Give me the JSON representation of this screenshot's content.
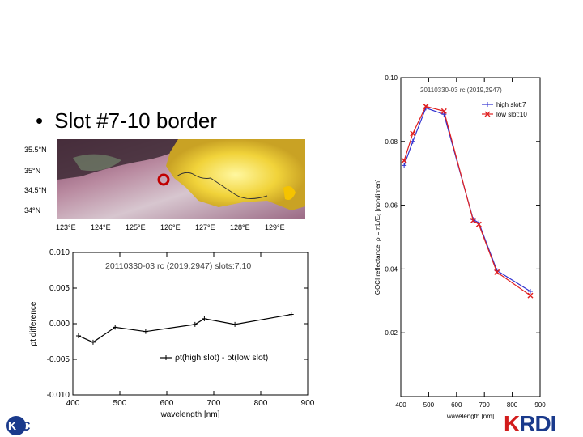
{
  "slide": {
    "bullet_text": "Slot #7-10 border",
    "bullet_mark": "•"
  },
  "map": {
    "lat_labels": [
      "35.5°N",
      "35°N",
      "34.5°N",
      "34°N"
    ],
    "lon_labels": [
      "123°E",
      "124°E",
      "125°E",
      "126°E",
      "127°E",
      "128°E",
      "129°E"
    ],
    "marker_color": "#c00000"
  },
  "logos": {
    "left_text": "KC",
    "right_text_a": "K",
    "right_text_b": "RDI"
  },
  "chart_data": [
    {
      "type": "line",
      "title": "20110330-03  rc   (2019,2947) slots:7,10",
      "xlabel": "wavelength [nm]",
      "ylabel": "ρt difference",
      "xlim": [
        400,
        900
      ],
      "ylim": [
        -0.01,
        0.01
      ],
      "x_ticks": [
        "400",
        "500",
        "600",
        "700",
        "800",
        "900"
      ],
      "y_ticks": [
        "0.010",
        "0.005",
        "0.000",
        "-0.005",
        "-0.010"
      ],
      "legend": "top-left of lower area",
      "series": [
        {
          "name": "ρt(high slot) - ρt(low slot)",
          "x": [
            412,
            443,
            490,
            555,
            660,
            680,
            745,
            865
          ],
          "y": [
            -0.0017,
            -0.0026,
            -0.0005,
            -0.0011,
            -0.0001,
            0.0007,
            -0.0001,
            0.0013
          ],
          "color": "#000000"
        }
      ]
    },
    {
      "type": "line",
      "title": "20110330-03  rc   (2019,2947)",
      "xlabel": "wavelength [nm]",
      "ylabel": "GOCI reflectance, ρ = πL/E₀ [nondimen]",
      "xlim": [
        400,
        900
      ],
      "ylim": [
        0,
        0.1
      ],
      "x_ticks": [
        "400",
        "500",
        "600",
        "700",
        "800",
        "900"
      ],
      "y_ticks": [
        "0.10",
        "0.08",
        "0.06",
        "0.04",
        "0.02"
      ],
      "legend": "top-right",
      "series": [
        {
          "name": "high slot:7",
          "x": [
            412,
            443,
            490,
            555,
            660,
            680,
            745,
            865
          ],
          "y": [
            0.0725,
            0.08,
            0.0905,
            0.0885,
            0.0555,
            0.0545,
            0.0395,
            0.033
          ],
          "color": "#3030d0"
        },
        {
          "name": "low slot:10",
          "x": [
            412,
            443,
            490,
            555,
            660,
            680,
            745,
            865
          ],
          "y": [
            0.074,
            0.0825,
            0.091,
            0.0895,
            0.0552,
            0.054,
            0.039,
            0.0317
          ],
          "color": "#e02020"
        }
      ]
    }
  ]
}
